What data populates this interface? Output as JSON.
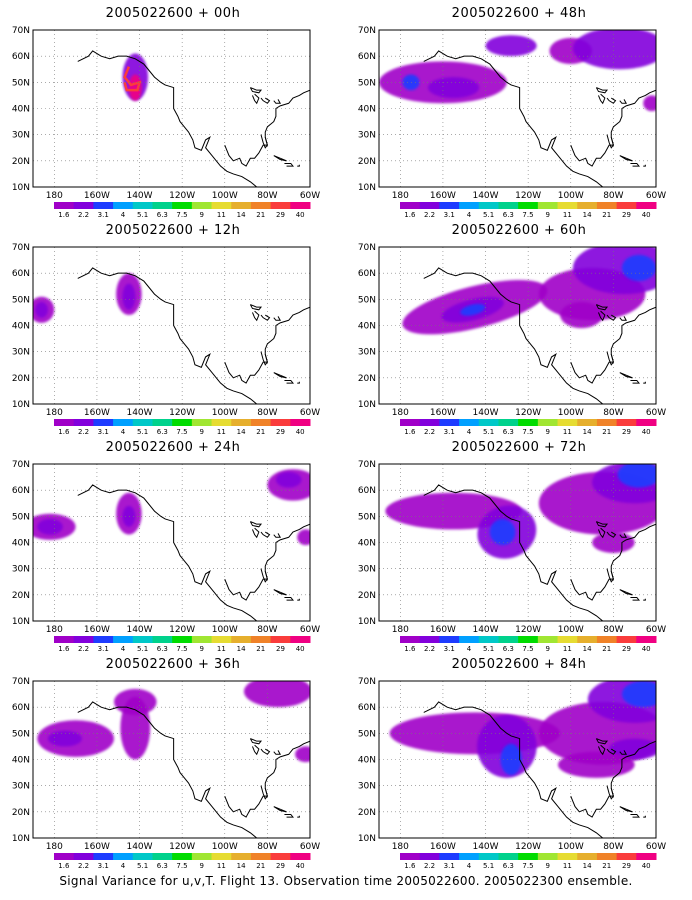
{
  "caption": "Signal Variance for u,v,T. Flight 13. Observation time 2005022600. 2005022300 ensemble.",
  "colorbar": {
    "labels": [
      "1.6",
      "2.2",
      "3.1",
      "4",
      "5.1",
      "6.3",
      "7.5",
      "9",
      "11",
      "14",
      "21",
      "29",
      "40"
    ],
    "colors": [
      "#a000c8",
      "#8200dc",
      "#1e3cff",
      "#00a0ff",
      "#00c8c8",
      "#00d28c",
      "#00dc00",
      "#a0e632",
      "#e6dc32",
      "#e6af2d",
      "#f08228",
      "#fa3c3c",
      "#f00082"
    ]
  },
  "axes": {
    "lat_labels": [
      "70N",
      "60N",
      "50N",
      "40N",
      "30N",
      "20N",
      "10N"
    ],
    "lon_labels": [
      "180",
      "160W",
      "140W",
      "120W",
      "100W",
      "80W",
      "60W"
    ]
  },
  "panels": [
    {
      "title": "2005022600 + 00h",
      "key": "h00"
    },
    {
      "title": "2005022600 + 48h",
      "key": "h48"
    },
    {
      "title": "2005022600 + 12h",
      "key": "h12"
    },
    {
      "title": "2005022600 + 60h",
      "key": "h60"
    },
    {
      "title": "2005022600 + 24h",
      "key": "h24"
    },
    {
      "title": "2005022600 + 72h",
      "key": "h72"
    },
    {
      "title": "2005022600 + 36h",
      "key": "h36"
    },
    {
      "title": "2005022600 + 84h",
      "key": "h84"
    }
  ]
}
